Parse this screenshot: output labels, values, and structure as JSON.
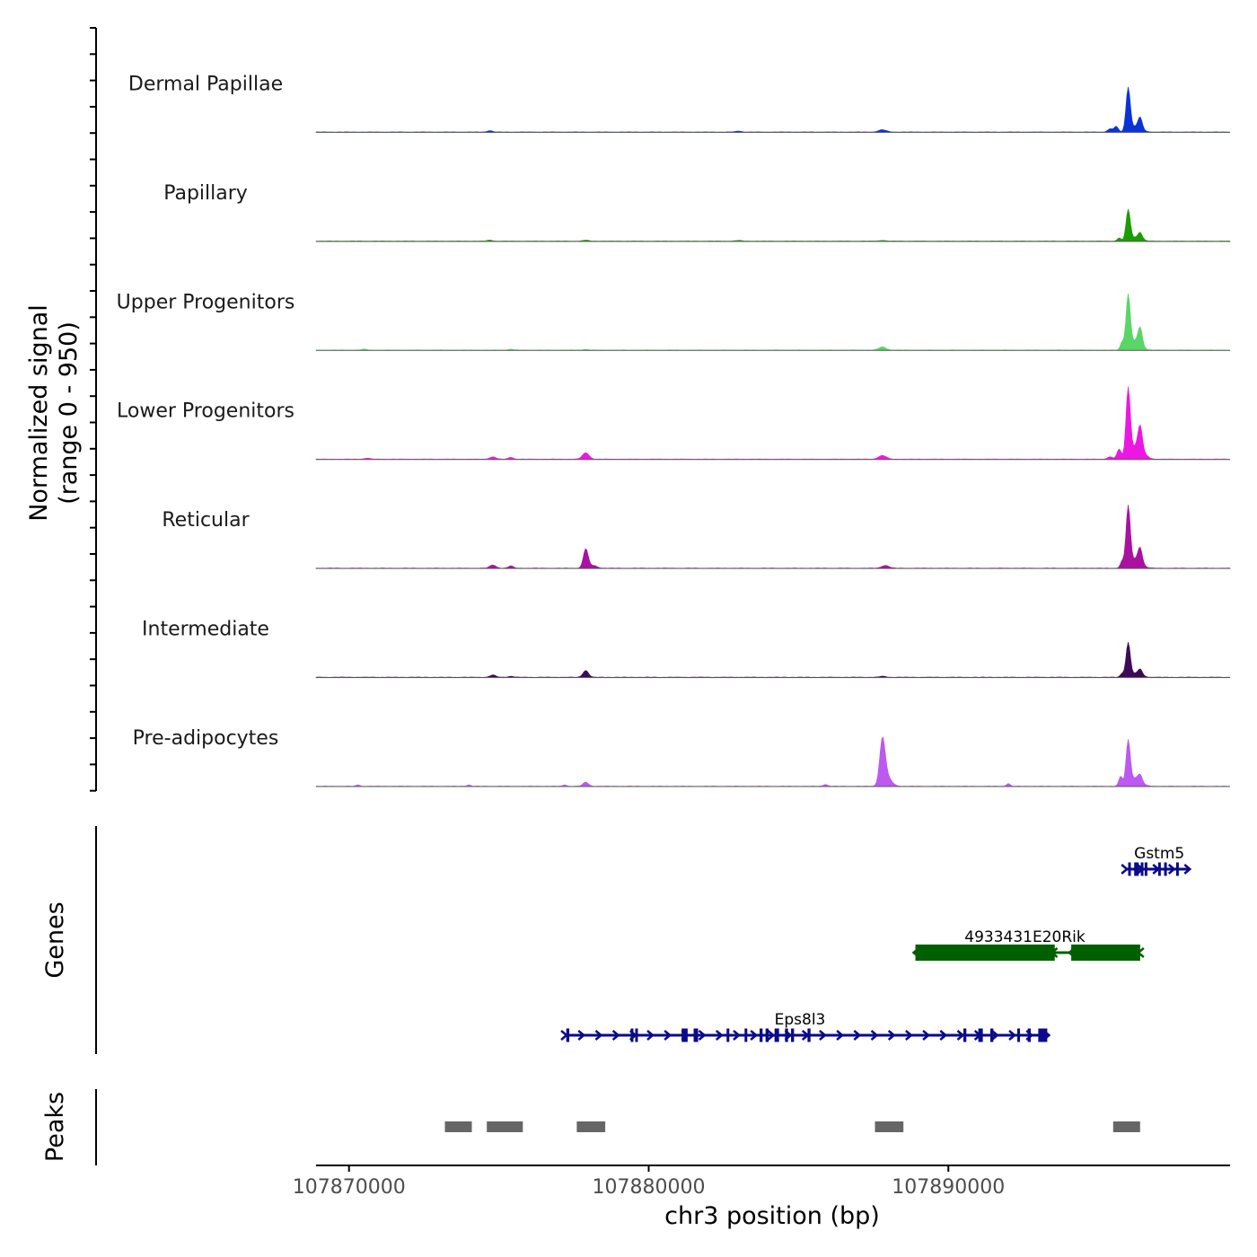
{
  "chart_data": {
    "type": "area",
    "title": "",
    "xlabel": "chr3 position (bp)",
    "ylabel": [
      "Normalized signal",
      "(range 0 - 950)"
    ],
    "xlim": [
      107868900,
      107899400
    ],
    "x_ticks": [
      107870000,
      107880000,
      107890000
    ],
    "x_tick_labels": [
      "107870000",
      "107880000",
      "107890000"
    ],
    "y_range": [
      0,
      950
    ],
    "track_labels": {
      "genes": "Genes",
      "peaks": "Peaks"
    },
    "series": [
      {
        "name": "Dermal Papillae",
        "color": "#0a33d6",
        "peaks": [
          {
            "x": 107896000,
            "h": 0.96,
            "w": 70
          },
          {
            "x": 107896250,
            "h": 0.12,
            "w": 180
          },
          {
            "x": 107896400,
            "h": 0.25,
            "w": 70
          },
          {
            "x": 107895600,
            "h": 0.12,
            "w": 70
          },
          {
            "x": 107895400,
            "h": 0.07,
            "w": 80
          },
          {
            "x": 107887800,
            "h": 0.05,
            "w": 130
          },
          {
            "x": 107874700,
            "h": 0.03,
            "w": 90
          },
          {
            "x": 107883000,
            "h": 0.02,
            "w": 100
          }
        ]
      },
      {
        "name": "Papillary",
        "color": "#1b9d00",
        "peaks": [
          {
            "x": 107896000,
            "h": 0.68,
            "w": 70
          },
          {
            "x": 107896250,
            "h": 0.08,
            "w": 180
          },
          {
            "x": 107896400,
            "h": 0.14,
            "w": 70
          },
          {
            "x": 107895700,
            "h": 0.07,
            "w": 60
          },
          {
            "x": 107874700,
            "h": 0.02,
            "w": 90
          },
          {
            "x": 107877900,
            "h": 0.02,
            "w": 90
          },
          {
            "x": 107883000,
            "h": 0.015,
            "w": 100
          },
          {
            "x": 107887800,
            "h": 0.015,
            "w": 100
          }
        ]
      },
      {
        "name": "Upper Progenitors",
        "color": "#5ad567",
        "peaks": [
          {
            "x": 107896000,
            "h": 1.18,
            "w": 70
          },
          {
            "x": 107896250,
            "h": 0.2,
            "w": 180
          },
          {
            "x": 107896400,
            "h": 0.38,
            "w": 70
          },
          {
            "x": 107895800,
            "h": 0.18,
            "w": 60
          },
          {
            "x": 107887800,
            "h": 0.07,
            "w": 120
          },
          {
            "x": 107870500,
            "h": 0.02,
            "w": 90
          },
          {
            "x": 107875400,
            "h": 0.02,
            "w": 90
          },
          {
            "x": 107877900,
            "h": 0.015,
            "w": 90
          }
        ]
      },
      {
        "name": "Lower Progenitors",
        "color": "#ee16e3",
        "peaks": [
          {
            "x": 107896000,
            "h": 1.52,
            "w": 70
          },
          {
            "x": 107896300,
            "h": 0.3,
            "w": 200
          },
          {
            "x": 107896400,
            "h": 0.5,
            "w": 70
          },
          {
            "x": 107895700,
            "h": 0.22,
            "w": 70
          },
          {
            "x": 107895400,
            "h": 0.05,
            "w": 90
          },
          {
            "x": 107877900,
            "h": 0.14,
            "w": 110
          },
          {
            "x": 107887800,
            "h": 0.08,
            "w": 130
          },
          {
            "x": 107874800,
            "h": 0.05,
            "w": 100
          },
          {
            "x": 107875400,
            "h": 0.04,
            "w": 80
          },
          {
            "x": 107870600,
            "h": 0.02,
            "w": 100
          }
        ]
      },
      {
        "name": "Reticular",
        "color": "#a8129f",
        "peaks": [
          {
            "x": 107896000,
            "h": 1.33,
            "w": 70
          },
          {
            "x": 107896250,
            "h": 0.2,
            "w": 180
          },
          {
            "x": 107896400,
            "h": 0.33,
            "w": 70
          },
          {
            "x": 107895800,
            "h": 0.15,
            "w": 60
          },
          {
            "x": 107877900,
            "h": 0.43,
            "w": 80
          },
          {
            "x": 107878150,
            "h": 0.06,
            "w": 120
          },
          {
            "x": 107874800,
            "h": 0.07,
            "w": 100
          },
          {
            "x": 107875400,
            "h": 0.05,
            "w": 80
          },
          {
            "x": 107887900,
            "h": 0.06,
            "w": 120
          }
        ]
      },
      {
        "name": "Intermediate",
        "color": "#3e0a55",
        "peaks": [
          {
            "x": 107896000,
            "h": 0.75,
            "w": 70
          },
          {
            "x": 107896250,
            "h": 0.08,
            "w": 180
          },
          {
            "x": 107896400,
            "h": 0.13,
            "w": 70
          },
          {
            "x": 107895800,
            "h": 0.08,
            "w": 60
          },
          {
            "x": 107877900,
            "h": 0.15,
            "w": 90
          },
          {
            "x": 107874800,
            "h": 0.05,
            "w": 90
          },
          {
            "x": 107875400,
            "h": 0.02,
            "w": 80
          },
          {
            "x": 107887800,
            "h": 0.02,
            "w": 100
          }
        ]
      },
      {
        "name": "Pre-adipocytes",
        "color": "#bb59f0",
        "peaks": [
          {
            "x": 107887800,
            "h": 0.98,
            "w": 90
          },
          {
            "x": 107887950,
            "h": 0.2,
            "w": 150
          },
          {
            "x": 107896000,
            "h": 0.98,
            "w": 70
          },
          {
            "x": 107896250,
            "h": 0.18,
            "w": 180
          },
          {
            "x": 107896400,
            "h": 0.14,
            "w": 70
          },
          {
            "x": 107895750,
            "h": 0.22,
            "w": 60
          },
          {
            "x": 107877900,
            "h": 0.09,
            "w": 90
          },
          {
            "x": 107892000,
            "h": 0.06,
            "w": 60
          },
          {
            "x": 107885900,
            "h": 0.04,
            "w": 70
          },
          {
            "x": 107870300,
            "h": 0.03,
            "w": 60
          },
          {
            "x": 107877200,
            "h": 0.03,
            "w": 60
          },
          {
            "x": 107874000,
            "h": 0.03,
            "w": 60
          }
        ]
      }
    ],
    "genes": [
      {
        "name": "Gstm5",
        "color": "#0a0a8a",
        "start": 107895900,
        "end": 107898000,
        "strand": "+",
        "exons": [
          [
            107896000,
            107896050
          ],
          [
            107896200,
            107896350
          ],
          [
            107896420,
            107896500
          ],
          [
            107896550,
            107896600
          ],
          [
            107897000,
            107897050
          ],
          [
            107897200,
            107897280
          ],
          [
            107897600,
            107897650
          ]
        ]
      },
      {
        "name": "4933431E20Rik",
        "color": "#006000",
        "start": 107888900,
        "end": 107896400,
        "strand": "-",
        "exons": [
          [
            107888900,
            107893550
          ],
          [
            107894100,
            107896400
          ]
        ]
      },
      {
        "name": "Eps8l3",
        "color": "#0a0a8a",
        "start": 107877200,
        "end": 107893300,
        "strand": "+",
        "exons": [
          [
            107877250,
            107877350
          ],
          [
            107879400,
            107879450
          ],
          [
            107879550,
            107879600
          ],
          [
            107881100,
            107881300
          ],
          [
            107881500,
            107881650
          ],
          [
            107882600,
            107882650
          ],
          [
            107883200,
            107883250
          ],
          [
            107883700,
            107883800
          ],
          [
            107883900,
            107884000
          ],
          [
            107884200,
            107884350
          ],
          [
            107884550,
            107884650
          ],
          [
            107884750,
            107884850
          ],
          [
            107885300,
            107885400
          ],
          [
            107890500,
            107890600
          ],
          [
            107891000,
            107891150
          ],
          [
            107891400,
            107891500
          ],
          [
            107892300,
            107892350
          ],
          [
            107892650,
            107892750
          ],
          [
            107893000,
            107893300
          ]
        ]
      }
    ],
    "peaks": [
      {
        "start": 107873200,
        "end": 107874100
      },
      {
        "start": 107874600,
        "end": 107875800
      },
      {
        "start": 107877600,
        "end": 107878550
      },
      {
        "start": 107887550,
        "end": 107888500
      },
      {
        "start": 107895500,
        "end": 107896400
      }
    ]
  }
}
